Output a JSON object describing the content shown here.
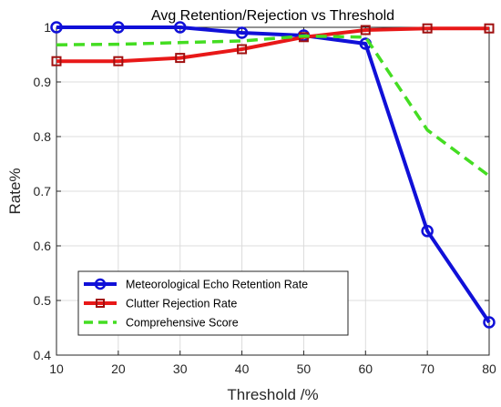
{
  "chart_data": {
    "type": "line",
    "title": "Avg Retention/Rejection vs Threshold",
    "xlabel": "Threshold /%",
    "ylabel": "Rate%",
    "x": [
      10,
      20,
      30,
      40,
      50,
      60,
      70,
      80
    ],
    "xlim": [
      10,
      80
    ],
    "ylim": [
      0.4,
      1.0
    ],
    "xticks": [
      "10",
      "20",
      "30",
      "40",
      "50",
      "60",
      "70",
      "80"
    ],
    "yticks": [
      "0.4",
      "0.5",
      "0.6",
      "0.7",
      "0.8",
      "0.9",
      "1"
    ],
    "grid": true,
    "legend_position": "bottom-left",
    "series": [
      {
        "name": "Meteorological Echo Retention Rate",
        "values": [
          1.0,
          1.0,
          1.0,
          0.99,
          0.985,
          0.97,
          0.627,
          0.46
        ],
        "color": "#1010d8",
        "marker": "circle",
        "style": "solid"
      },
      {
        "name": "Clutter Rejection Rate",
        "values": [
          0.938,
          0.938,
          0.944,
          0.96,
          0.982,
          0.995,
          0.998,
          0.998
        ],
        "color": "#e81818",
        "marker": "square",
        "style": "solid"
      },
      {
        "name": "Comprehensive Score",
        "values": [
          0.968,
          0.969,
          0.972,
          0.975,
          0.984,
          0.982,
          0.812,
          0.728
        ],
        "color": "#44dd22",
        "marker": "none",
        "style": "dashed"
      }
    ]
  }
}
